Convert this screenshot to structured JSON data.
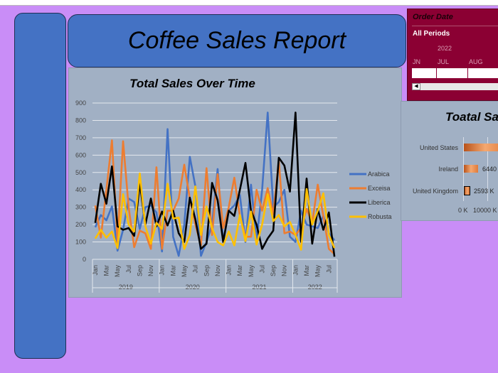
{
  "report": {
    "title": "Coffee Sales Report"
  },
  "slicer": {
    "header": "Order Date",
    "selection": "All Periods",
    "year": "2022",
    "months": [
      "JN",
      "JUL",
      "AUG"
    ],
    "accent": "#8b0033"
  },
  "country_chart": {
    "title": "Toatal Sa",
    "countries": [
      "United States",
      "Ireland",
      "United Kingdom"
    ],
    "value_labels": [
      "",
      "6440",
      "2593 K"
    ],
    "axis_ticks": [
      "0 K",
      "10000 K"
    ]
  },
  "chart_data": {
    "type": "line",
    "title": "Total Sales Over Time",
    "ylim": [
      0,
      900
    ],
    "yticks": [
      0,
      100,
      200,
      300,
      400,
      500,
      600,
      700,
      800,
      900
    ],
    "grid": true,
    "legend": "right",
    "years": [
      {
        "label": "2019",
        "months": 12
      },
      {
        "label": "2020",
        "months": 12
      },
      {
        "label": "2021",
        "months": 12
      },
      {
        "label": "2022",
        "months": 8
      }
    ],
    "month_tick_labels": [
      "Jan",
      "Mar",
      "May",
      "Jul",
      "Sep",
      "Nov"
    ],
    "series": [
      {
        "name": "Arabica",
        "color": "#4472c4",
        "values": [
          185,
          255,
          225,
          305,
          50,
          170,
          350,
          330,
          175,
          300,
          310,
          270,
          45,
          750,
          130,
          20,
          200,
          590,
          420,
          20,
          100,
          200,
          520,
          100,
          280,
          310,
          370,
          100,
          430,
          110,
          400,
          845,
          300,
          330,
          400,
          130,
          100,
          280,
          200,
          190,
          180,
          250,
          150,
          110
        ]
      },
      {
        "name": "Exceisa",
        "color": "#ed7d31",
        "values": [
          310,
          125,
          400,
          685,
          100,
          680,
          300,
          70,
          165,
          150,
          60,
          530,
          60,
          280,
          280,
          350,
          545,
          350,
          200,
          80,
          525,
          140,
          490,
          180,
          300,
          470,
          250,
          130,
          130,
          400,
          280,
          410,
          260,
          565,
          150,
          160,
          140,
          180,
          290,
          210,
          430,
          250,
          60,
          30
        ]
      },
      {
        "name": "Liberica",
        "color": "#000000",
        "values": [
          210,
          435,
          320,
          535,
          190,
          170,
          180,
          135,
          440,
          200,
          350,
          190,
          275,
          195,
          280,
          150,
          100,
          355,
          230,
          60,
          90,
          440,
          340,
          100,
          280,
          250,
          400,
          555,
          280,
          200,
          60,
          120,
          165,
          585,
          540,
          390,
          845,
          100,
          465,
          90,
          290,
          170,
          270,
          15
        ]
      },
      {
        "name": "Robusta",
        "color": "#ffc000",
        "values": [
          120,
          170,
          125,
          160,
          65,
          375,
          200,
          160,
          495,
          190,
          90,
          210,
          175,
          435,
          235,
          240,
          60,
          140,
          420,
          140,
          305,
          180,
          100,
          80,
          160,
          80,
          255,
          105,
          275,
          85,
          200,
          375,
          220,
          255,
          190,
          215,
          140,
          55,
          405,
          200,
          280,
          380,
          140,
          65
        ]
      }
    ]
  }
}
